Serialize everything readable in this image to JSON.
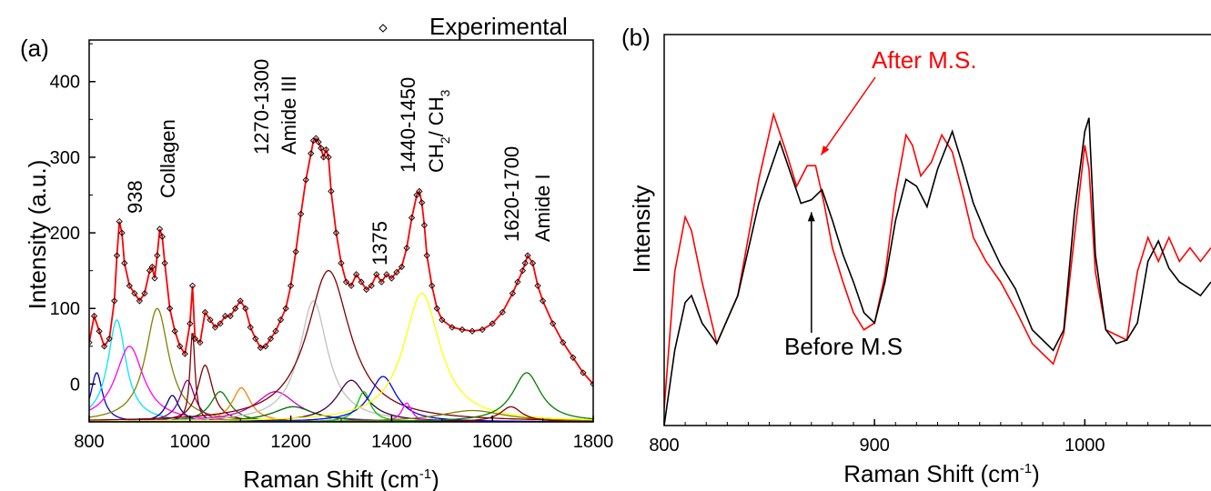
{
  "chart_data": [
    {
      "type": "line",
      "panel_label": "(a)",
      "xlabel_main": "Raman Shift (cm",
      "xlabel_sup": "-1",
      "xlabel_end": ")",
      "ylabel": "Intensity (a.u.)",
      "xlim": [
        800,
        1800
      ],
      "ylim": [
        -50,
        455
      ],
      "x_ticks": [
        800,
        1000,
        1200,
        1400,
        1600,
        1800
      ],
      "y_ticks": [
        0,
        100,
        200,
        300,
        400
      ],
      "x_tick_labels": [
        "800",
        "1000",
        "1200",
        "1400",
        "1600",
        "1800"
      ],
      "y_tick_labels": [
        "0",
        "100",
        "200",
        "300",
        "400"
      ],
      "legend": {
        "label": "Experimental",
        "marker": "open-diamond",
        "position": "top-right"
      },
      "experimental": {
        "x": [
          800,
          810,
          820,
          830,
          840,
          850,
          855,
          860,
          865,
          870,
          880,
          890,
          900,
          910,
          920,
          925,
          930,
          935,
          940,
          945,
          950,
          960,
          970,
          980,
          990,
          1000,
          1005,
          1010,
          1020,
          1030,
          1040,
          1050,
          1060,
          1070,
          1080,
          1090,
          1100,
          1110,
          1120,
          1130,
          1140,
          1150,
          1160,
          1170,
          1180,
          1190,
          1200,
          1210,
          1220,
          1230,
          1240,
          1245,
          1250,
          1255,
          1260,
          1265,
          1270,
          1275,
          1280,
          1290,
          1300,
          1310,
          1320,
          1330,
          1340,
          1350,
          1360,
          1370,
          1380,
          1390,
          1400,
          1410,
          1420,
          1430,
          1440,
          1450,
          1455,
          1460,
          1465,
          1470,
          1480,
          1490,
          1500,
          1520,
          1540,
          1560,
          1580,
          1600,
          1620,
          1640,
          1650,
          1660,
          1665,
          1670,
          1680,
          1690,
          1700,
          1720,
          1740,
          1760,
          1780,
          1800
        ],
        "y": [
          55,
          90,
          70,
          50,
          60,
          110,
          170,
          215,
          200,
          160,
          130,
          120,
          110,
          120,
          150,
          155,
          140,
          170,
          205,
          195,
          160,
          100,
          70,
          50,
          40,
          80,
          130,
          60,
          55,
          95,
          85,
          75,
          80,
          90,
          90,
          100,
          110,
          100,
          75,
          60,
          48,
          50,
          60,
          70,
          85,
          100,
          130,
          175,
          225,
          270,
          305,
          322,
          325,
          320,
          312,
          300,
          310,
          300,
          255,
          200,
          160,
          135,
          130,
          145,
          135,
          125,
          130,
          145,
          135,
          145,
          140,
          148,
          155,
          180,
          220,
          250,
          255,
          240,
          210,
          170,
          130,
          100,
          85,
          75,
          72,
          70,
          72,
          80,
          95,
          120,
          135,
          150,
          160,
          170,
          160,
          130,
          110,
          80,
          55,
          35,
          15,
          0
        ]
      },
      "series": [
        {
          "name": "",
          "color": "#0000cc",
          "center": 815,
          "height": 65,
          "width": 14
        },
        {
          "name": "",
          "color": "#00e5ff",
          "center": 855,
          "height": 135,
          "width": 22
        },
        {
          "name": "",
          "color": "#ff00ff",
          "center": 880,
          "height": 100,
          "width": 34
        },
        {
          "name": "",
          "color": "#808000",
          "center": 935,
          "height": 150,
          "width": 28
        },
        {
          "name": "",
          "color": "#000080",
          "center": 965,
          "height": 35,
          "width": 16
        },
        {
          "name": "",
          "color": "#800080",
          "center": 995,
          "height": 55,
          "width": 18
        },
        {
          "name": "",
          "color": "#7f0000",
          "center": 1005,
          "height": 120,
          "width": 6
        },
        {
          "name": "",
          "color": "#800000",
          "center": 1030,
          "height": 75,
          "width": 18
        },
        {
          "name": "",
          "color": "#008000",
          "center": 1060,
          "height": 40,
          "width": 24
        },
        {
          "name": "",
          "color": "#ff8000",
          "center": 1102,
          "height": 45,
          "width": 22
        },
        {
          "name": "",
          "color": "#cc00cc",
          "center": 1170,
          "height": 40,
          "width": 50
        },
        {
          "name": "",
          "color": "#006400",
          "center": 1205,
          "height": 20,
          "width": 50
        },
        {
          "name": "",
          "color": "#c0c0c0",
          "center": 1245,
          "height": 160,
          "width": 34
        },
        {
          "name": "",
          "color": "#800000",
          "center": 1275,
          "height": 200,
          "width": 52
        },
        {
          "name": "",
          "color": "#400040",
          "center": 1320,
          "height": 55,
          "width": 36
        },
        {
          "name": "",
          "color": "#00c000",
          "center": 1345,
          "height": 40,
          "width": 16
        },
        {
          "name": "",
          "color": "#0000ff",
          "center": 1383,
          "height": 60,
          "width": 32
        },
        {
          "name": "",
          "color": "#ff00ff",
          "center": 1430,
          "height": 25,
          "width": 12
        },
        {
          "name": "",
          "color": "#ffff00",
          "center": 1460,
          "height": 170,
          "width": 44
        },
        {
          "name": "",
          "color": "#808000",
          "center": 1560,
          "height": 15,
          "width": 80
        },
        {
          "name": "",
          "color": "#800000",
          "center": 1637,
          "height": 20,
          "width": 26
        },
        {
          "name": "",
          "color": "#008000",
          "center": 1668,
          "height": 65,
          "width": 34
        }
      ],
      "annotations": [
        {
          "id": "ann-938",
          "text": "938",
          "x": 938
        },
        {
          "id": "ann-collagen",
          "text": "Collagen",
          "x": 955
        },
        {
          "id": "ann-1270",
          "text": "1270-1300",
          "x": 1185
        },
        {
          "id": "ann-amide3",
          "text": "Amide III",
          "x": 1220
        },
        {
          "id": "ann-1375",
          "text": "1375",
          "x": 1380
        },
        {
          "id": "ann-1440",
          "text": "1440-1450",
          "x": 1445
        },
        {
          "id": "ann-ch",
          "text": "CH",
          "sub1": "2",
          "mid": "/ CH",
          "sub2": "3",
          "x": 1485
        },
        {
          "id": "ann-1620",
          "text": "1620-1700",
          "x": 1633
        },
        {
          "id": "ann-amide1",
          "text": "Amide I",
          "x": 1668
        }
      ]
    },
    {
      "type": "line",
      "panel_label": "(b)",
      "xlabel_main": "Raman Shift (cm",
      "xlabel_sup": "-1",
      "xlabel_end": ")",
      "ylabel": "Intensity",
      "xlim": [
        800,
        1060
      ],
      "ylim": [
        0,
        1
      ],
      "x_ticks": [
        800,
        900,
        1000
      ],
      "x_tick_labels": [
        "800",
        "900",
        "1000"
      ],
      "series": [
        {
          "name": "After M.S.",
          "color": "#ff0000",
          "x": [
            800,
            805,
            810,
            813,
            818,
            825,
            835,
            845,
            852,
            858,
            863,
            868,
            872,
            876,
            880,
            885,
            890,
            895,
            900,
            905,
            910,
            915,
            918,
            922,
            927,
            932,
            937,
            942,
            947,
            953,
            960,
            967,
            975,
            985,
            990,
            995,
            1000,
            1002,
            1005,
            1010,
            1020,
            1025,
            1030,
            1035,
            1040,
            1045,
            1050,
            1055,
            1060
          ],
          "y": [
            0.05,
            0.45,
            0.61,
            0.57,
            0.42,
            0.24,
            0.38,
            0.72,
            0.91,
            0.8,
            0.7,
            0.76,
            0.76,
            0.65,
            0.52,
            0.42,
            0.33,
            0.28,
            0.3,
            0.44,
            0.68,
            0.85,
            0.82,
            0.73,
            0.77,
            0.85,
            0.8,
            0.68,
            0.55,
            0.48,
            0.42,
            0.34,
            0.24,
            0.18,
            0.27,
            0.55,
            0.82,
            0.75,
            0.45,
            0.28,
            0.25,
            0.45,
            0.55,
            0.48,
            0.55,
            0.48,
            0.52,
            0.48,
            0.52
          ]
        },
        {
          "name": "Before M.S",
          "color": "#000000",
          "x": [
            800,
            805,
            810,
            813,
            818,
            825,
            835,
            845,
            855,
            860,
            865,
            870,
            875,
            880,
            885,
            890,
            895,
            900,
            905,
            910,
            915,
            920,
            925,
            930,
            937,
            942,
            947,
            953,
            960,
            967,
            975,
            985,
            990,
            995,
            1000,
            1002,
            1005,
            1010,
            1015,
            1020,
            1025,
            1030,
            1035,
            1040,
            1045,
            1050,
            1055,
            1060
          ],
          "y": [
            0.0,
            0.22,
            0.36,
            0.38,
            0.3,
            0.24,
            0.38,
            0.65,
            0.83,
            0.74,
            0.65,
            0.66,
            0.69,
            0.6,
            0.5,
            0.42,
            0.33,
            0.3,
            0.42,
            0.6,
            0.72,
            0.7,
            0.64,
            0.75,
            0.86,
            0.76,
            0.65,
            0.56,
            0.47,
            0.4,
            0.28,
            0.22,
            0.28,
            0.62,
            0.86,
            0.9,
            0.5,
            0.28,
            0.24,
            0.25,
            0.3,
            0.48,
            0.54,
            0.46,
            0.42,
            0.4,
            0.38,
            0.42
          ]
        }
      ],
      "annotations": [
        {
          "id": "ann-after",
          "text": "After M.S.",
          "color": "#ff0000",
          "target_x": 872,
          "target_y": 0.77
        },
        {
          "id": "ann-before",
          "text": "Before M.S",
          "color": "#000000",
          "target_x": 870,
          "target_y": 0.64
        }
      ]
    }
  ]
}
